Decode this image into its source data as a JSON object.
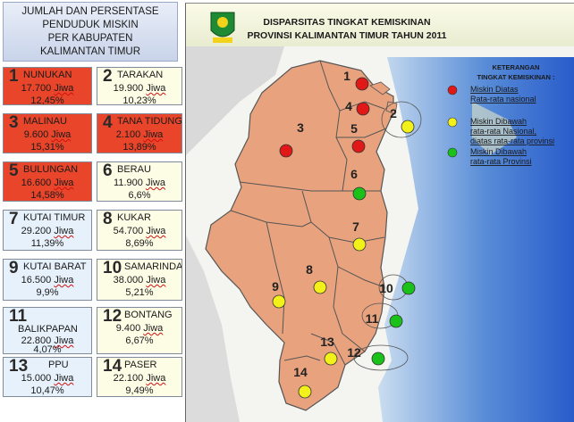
{
  "title": {
    "lines": [
      "JUMLAH DAN PERSENTASE",
      "PENDUDUK MISKIN",
      "PER KABUPATEN",
      "KALIMANTAN TIMUR"
    ]
  },
  "regions": [
    {
      "num": "1",
      "name": "NUNUKAN",
      "pop": "17.700",
      "unit": "Jiwa",
      "pct": "12,45%",
      "status": "red"
    },
    {
      "num": "2",
      "name": "TARAKAN",
      "pop": "19.900",
      "unit": "Jiwa",
      "pct": "10,23%",
      "status": "yellow"
    },
    {
      "num": "3",
      "name": "MALINAU",
      "pop": "9.600",
      "unit": "Jiwa",
      "pct": "15,31%",
      "status": "red"
    },
    {
      "num": "4",
      "name": "TANA TIDUNG",
      "pop": "2.100",
      "unit": "Jiwa",
      "pct": "13,89%",
      "status": "red"
    },
    {
      "num": "5",
      "name": "BULUNGAN",
      "pop": "16.600",
      "unit": "Jiwa",
      "pct": "14,58%",
      "status": "red"
    },
    {
      "num": "6",
      "name": "BERAU",
      "pop": "11.900",
      "unit": "Jiwa",
      "pct": "6,6%",
      "status": "green"
    },
    {
      "num": "7",
      "name": "KUTAI TIMUR",
      "pop": "29.200",
      "unit": "Jiwa",
      "pct": "11,39%",
      "status": "yellow"
    },
    {
      "num": "8",
      "name": "KUKAR",
      "pop": "54.700",
      "unit": "Jiwa",
      "pct": "8,69%",
      "status": "yellow"
    },
    {
      "num": "9",
      "name": "KUTAI BARAT",
      "pop": "16.500",
      "unit": "Jiwa",
      "pct": "9,9%",
      "status": "yellow"
    },
    {
      "num": "10",
      "name": "SAMARINDA",
      "pop": "38.000",
      "unit": "Jiwa",
      "pct": "5,21%",
      "status": "green"
    },
    {
      "num": "11",
      "name": "BALIKPAPAN",
      "pop": "22.800",
      "unit": "Jiwa",
      "pct": "4,07%",
      "status": "green"
    },
    {
      "num": "12",
      "name": "BONTANG",
      "pop": "9.400",
      "unit": "Jiwa",
      "pct": "6,67%",
      "status": "green"
    },
    {
      "num": "13",
      "name": "PPU",
      "pop": "15.000",
      "unit": "Jiwa",
      "pct": "10,47%",
      "status": "yellow"
    },
    {
      "num": "14",
      "name": "PASER",
      "pop": "22.100",
      "unit": "Jiwa",
      "pct": "9,49%",
      "status": "yellow"
    }
  ],
  "map": {
    "title_line1": "DISPARSITAS TINGKAT KEMISKINAN",
    "title_line2": "PROVINSI KALIMANTAN TIMUR TAHUN 2011",
    "legend_title_line1": "KETERANGAN",
    "legend_title_line2": "TINGKAT KEMISKINAN :",
    "legend": [
      {
        "color": "#e01818",
        "line1": "Miskin Diatas",
        "line2": "Rata-rata nasional",
        "line3": ""
      },
      {
        "color": "#f2f21a",
        "line1": "Miskin Dibawah",
        "line2": "rata-rata Nasional,",
        "line3": "diatas rata-rata provinsi"
      },
      {
        "color": "#19c119",
        "line1": "Miskin Dibawah",
        "line2": "rata-rata Provinsi",
        "line3": ""
      }
    ],
    "status_colors": {
      "red": "#e01818",
      "yellow": "#f2f21a",
      "green": "#19c119"
    }
  }
}
